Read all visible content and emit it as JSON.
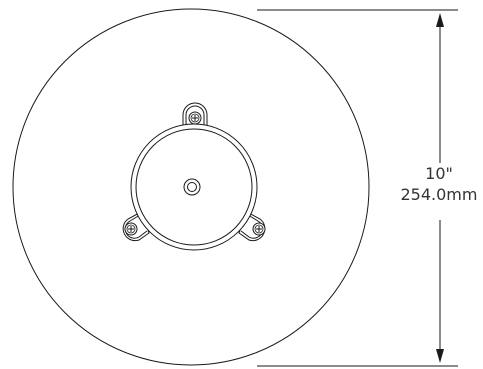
{
  "dimension": {
    "imperial": "10\"",
    "metric": "254.0mm"
  },
  "colors": {
    "line": "#1a1a1a",
    "text": "#333333",
    "background": "#ffffff"
  }
}
